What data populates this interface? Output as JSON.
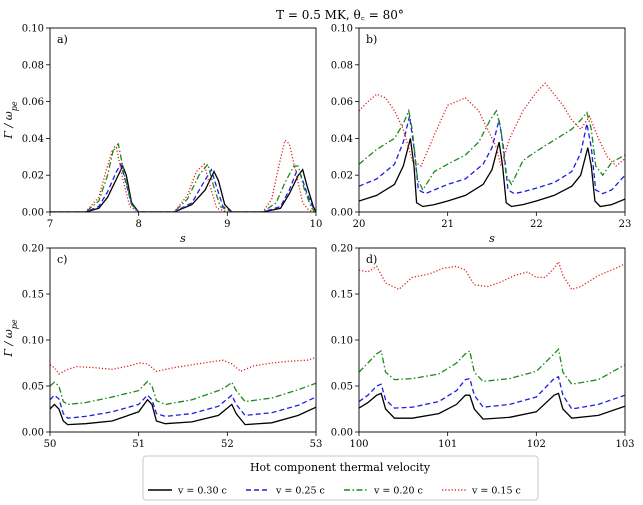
{
  "figure": {
    "title": "T = 0.5 MK, θ꜀ = 80°",
    "ylabel": "Γ / ω",
    "ylabel_sub": "pe"
  },
  "legend": {
    "title": "Hot component thermal velocity",
    "placement": "bottom-center",
    "entries": [
      {
        "label": "v = 0.30 c",
        "color": "#000000",
        "dash": "solid"
      },
      {
        "label": "v = 0.25 c",
        "color": "#1f1fe0",
        "dash": "dashed"
      },
      {
        "label": "v = 0.20 c",
        "color": "#1a8a1a",
        "dash": "dashdot"
      },
      {
        "label": "v = 0.15 c",
        "color": "#e02020",
        "dash": "dotted"
      }
    ]
  },
  "chart_data": [
    {
      "type": "line",
      "panel": "a)",
      "xlabel": "s",
      "xlim": [
        7,
        10
      ],
      "ylim": [
        0,
        0.1
      ],
      "xticks": [
        "7",
        "8",
        "9",
        "10"
      ],
      "yticks": [
        "0.00",
        "0.02",
        "0.04",
        "0.06",
        "0.08",
        "0.10"
      ],
      "series": [
        {
          "name": "v = 0.30 c",
          "color": "#000000",
          "dash": "solid",
          "x": [
            7.0,
            7.4,
            7.55,
            7.65,
            7.75,
            7.82,
            7.86,
            7.92,
            8.0,
            8.4,
            8.6,
            8.75,
            8.85,
            8.9,
            8.97,
            9.05,
            9.4,
            9.6,
            9.7,
            9.8,
            9.85,
            9.9,
            9.97,
            10.0
          ],
          "y": [
            0.0,
            0.0,
            0.002,
            0.008,
            0.018,
            0.025,
            0.02,
            0.005,
            0.0,
            0.0,
            0.004,
            0.012,
            0.022,
            0.017,
            0.004,
            0.0,
            0.0,
            0.002,
            0.01,
            0.02,
            0.023,
            0.014,
            0.003,
            0.0
          ]
        },
        {
          "name": "v = 0.25 c",
          "color": "#1f1fe0",
          "dash": "dashed",
          "x": [
            7.0,
            7.4,
            7.55,
            7.65,
            7.75,
            7.8,
            7.85,
            7.92,
            8.0,
            8.4,
            8.6,
            8.72,
            8.82,
            8.87,
            8.95,
            9.05,
            9.4,
            9.6,
            9.7,
            9.78,
            9.83,
            9.9,
            9.97,
            10.0
          ],
          "y": [
            0.0,
            0.0,
            0.003,
            0.011,
            0.022,
            0.026,
            0.017,
            0.004,
            0.0,
            0.0,
            0.005,
            0.015,
            0.023,
            0.015,
            0.003,
            0.0,
            0.0,
            0.003,
            0.012,
            0.022,
            0.02,
            0.01,
            0.002,
            0.0
          ]
        },
        {
          "name": "v = 0.20 c",
          "color": "#1a8a1a",
          "dash": "dashdot",
          "x": [
            7.0,
            7.4,
            7.55,
            7.65,
            7.72,
            7.77,
            7.84,
            7.92,
            8.0,
            8.4,
            8.55,
            8.68,
            8.78,
            8.84,
            8.92,
            9.05,
            9.4,
            9.55,
            9.65,
            9.75,
            9.8,
            9.87,
            9.95,
            10.0
          ],
          "y": [
            0.0,
            0.0,
            0.006,
            0.02,
            0.035,
            0.037,
            0.02,
            0.004,
            0.0,
            0.0,
            0.007,
            0.02,
            0.026,
            0.015,
            0.003,
            0.0,
            0.0,
            0.005,
            0.016,
            0.025,
            0.025,
            0.012,
            0.002,
            0.0
          ]
        },
        {
          "name": "v = 0.15 c",
          "color": "#e02020",
          "dash": "dotted",
          "x": [
            7.0,
            7.4,
            7.55,
            7.63,
            7.7,
            7.75,
            7.82,
            7.9,
            8.0,
            8.4,
            8.55,
            8.65,
            8.74,
            8.8,
            8.88,
            9.0,
            9.4,
            9.5,
            9.58,
            9.65,
            9.7,
            9.78,
            9.85,
            9.92,
            10.0
          ],
          "y": [
            0.0,
            0.0,
            0.008,
            0.022,
            0.033,
            0.035,
            0.018,
            0.003,
            0.0,
            0.0,
            0.009,
            0.022,
            0.026,
            0.015,
            0.002,
            0.0,
            0.0,
            0.007,
            0.025,
            0.039,
            0.037,
            0.02,
            0.005,
            0.001,
            0.0
          ]
        }
      ]
    },
    {
      "type": "line",
      "panel": "b)",
      "xlabel": "s",
      "xlim": [
        20,
        23
      ],
      "ylim": [
        0,
        0.1
      ],
      "xticks": [
        "20",
        "21",
        "22",
        "23"
      ],
      "yticks": [
        "0.00",
        "0.02",
        "0.04",
        "0.06",
        "0.08",
        "0.10"
      ],
      "series": [
        {
          "name": "v = 0.30 c",
          "color": "#000000",
          "dash": "solid",
          "x": [
            20.0,
            20.2,
            20.4,
            20.5,
            20.58,
            20.62,
            20.65,
            20.72,
            20.85,
            21.0,
            21.2,
            21.4,
            21.5,
            21.58,
            21.62,
            21.66,
            21.72,
            21.85,
            22.0,
            22.2,
            22.4,
            22.5,
            22.58,
            22.62,
            22.66,
            22.72,
            22.85,
            23.0
          ],
          "y": [
            0.006,
            0.009,
            0.015,
            0.025,
            0.04,
            0.025,
            0.005,
            0.003,
            0.004,
            0.006,
            0.009,
            0.015,
            0.023,
            0.038,
            0.025,
            0.005,
            0.003,
            0.004,
            0.006,
            0.009,
            0.014,
            0.02,
            0.035,
            0.025,
            0.006,
            0.003,
            0.004,
            0.007
          ]
        },
        {
          "name": "v = 0.25 c",
          "color": "#1f1fe0",
          "dash": "dashed",
          "x": [
            20.0,
            20.2,
            20.4,
            20.5,
            20.57,
            20.62,
            20.67,
            20.75,
            20.85,
            21.0,
            21.2,
            21.4,
            21.5,
            21.58,
            21.63,
            21.68,
            21.75,
            21.85,
            22.0,
            22.2,
            22.4,
            22.5,
            22.57,
            22.62,
            22.67,
            22.75,
            22.85,
            23.0
          ],
          "y": [
            0.014,
            0.018,
            0.026,
            0.038,
            0.052,
            0.035,
            0.012,
            0.01,
            0.012,
            0.015,
            0.018,
            0.026,
            0.035,
            0.05,
            0.035,
            0.012,
            0.01,
            0.011,
            0.013,
            0.016,
            0.022,
            0.032,
            0.048,
            0.035,
            0.012,
            0.01,
            0.012,
            0.02
          ]
        },
        {
          "name": "v = 0.20 c",
          "color": "#1a8a1a",
          "dash": "dashdot",
          "x": [
            20.0,
            20.2,
            20.4,
            20.5,
            20.56,
            20.6,
            20.66,
            20.72,
            20.85,
            21.0,
            21.2,
            21.35,
            21.48,
            21.55,
            21.6,
            21.66,
            21.72,
            21.85,
            22.0,
            22.2,
            22.4,
            22.5,
            22.57,
            22.62,
            22.67,
            22.75,
            22.85,
            23.0
          ],
          "y": [
            0.026,
            0.034,
            0.04,
            0.048,
            0.055,
            0.045,
            0.018,
            0.012,
            0.022,
            0.026,
            0.031,
            0.038,
            0.05,
            0.055,
            0.045,
            0.02,
            0.015,
            0.028,
            0.033,
            0.039,
            0.045,
            0.05,
            0.054,
            0.045,
            0.025,
            0.02,
            0.027,
            0.031
          ]
        },
        {
          "name": "v = 0.15 c",
          "color": "#e02020",
          "dash": "dotted",
          "x": [
            20.0,
            20.1,
            20.2,
            20.3,
            20.4,
            20.5,
            20.6,
            20.7,
            20.85,
            21.0,
            21.2,
            21.35,
            21.45,
            21.55,
            21.6,
            21.7,
            21.85,
            22.0,
            22.1,
            22.2,
            22.3,
            22.4,
            22.5,
            22.6,
            22.7,
            22.8,
            22.9,
            23.0
          ],
          "y": [
            0.055,
            0.06,
            0.064,
            0.062,
            0.055,
            0.045,
            0.028,
            0.025,
            0.042,
            0.058,
            0.062,
            0.055,
            0.045,
            0.035,
            0.025,
            0.04,
            0.055,
            0.065,
            0.07,
            0.064,
            0.058,
            0.05,
            0.045,
            0.052,
            0.04,
            0.03,
            0.025,
            0.029
          ]
        }
      ]
    },
    {
      "type": "line",
      "panel": "c)",
      "xlabel": "s",
      "xlim": [
        50,
        53
      ],
      "ylim": [
        0,
        0.2
      ],
      "xticks": [
        "50",
        "51",
        "52",
        "53"
      ],
      "yticks": [
        "0.00",
        "0.05",
        "0.10",
        "0.15",
        "0.20"
      ],
      "series": [
        {
          "name": "v = 0.30 c",
          "color": "#000000",
          "dash": "solid",
          "x": [
            50.0,
            50.05,
            50.1,
            50.15,
            50.2,
            50.4,
            50.7,
            51.0,
            51.1,
            51.15,
            51.2,
            51.3,
            51.6,
            51.9,
            52.0,
            52.05,
            52.1,
            52.2,
            52.5,
            52.8,
            53.0
          ],
          "y": [
            0.025,
            0.03,
            0.025,
            0.012,
            0.008,
            0.009,
            0.012,
            0.022,
            0.035,
            0.03,
            0.012,
            0.009,
            0.011,
            0.018,
            0.026,
            0.03,
            0.02,
            0.008,
            0.01,
            0.018,
            0.027
          ]
        },
        {
          "name": "v = 0.25 c",
          "color": "#1f1fe0",
          "dash": "dashed",
          "x": [
            50.0,
            50.05,
            50.1,
            50.15,
            50.2,
            50.4,
            50.7,
            51.0,
            51.1,
            51.15,
            51.2,
            51.3,
            51.6,
            51.9,
            52.0,
            52.05,
            52.1,
            52.2,
            52.5,
            52.8,
            53.0
          ],
          "y": [
            0.035,
            0.04,
            0.036,
            0.02,
            0.015,
            0.017,
            0.022,
            0.03,
            0.04,
            0.035,
            0.02,
            0.017,
            0.02,
            0.028,
            0.036,
            0.04,
            0.03,
            0.018,
            0.021,
            0.029,
            0.038
          ]
        },
        {
          "name": "v = 0.20 c",
          "color": "#1a8a1a",
          "dash": "dashdot",
          "x": [
            50.0,
            50.05,
            50.1,
            50.15,
            50.2,
            50.4,
            50.7,
            51.0,
            51.1,
            51.15,
            51.2,
            51.3,
            51.6,
            51.9,
            52.0,
            52.05,
            52.1,
            52.2,
            52.5,
            52.8,
            53.0
          ],
          "y": [
            0.05,
            0.054,
            0.05,
            0.033,
            0.03,
            0.032,
            0.038,
            0.045,
            0.055,
            0.05,
            0.034,
            0.03,
            0.035,
            0.045,
            0.05,
            0.054,
            0.045,
            0.033,
            0.037,
            0.046,
            0.053
          ]
        },
        {
          "name": "v = 0.15 c",
          "color": "#e02020",
          "dash": "dotted",
          "x": [
            50.0,
            50.05,
            50.1,
            50.2,
            50.3,
            50.5,
            50.7,
            50.9,
            51.0,
            51.1,
            51.15,
            51.2,
            51.4,
            51.6,
            51.8,
            51.95,
            52.05,
            52.1,
            52.15,
            52.3,
            52.5,
            52.7,
            52.9,
            53.0
          ],
          "y": [
            0.073,
            0.07,
            0.063,
            0.068,
            0.071,
            0.07,
            0.068,
            0.072,
            0.075,
            0.074,
            0.07,
            0.066,
            0.07,
            0.073,
            0.076,
            0.078,
            0.074,
            0.07,
            0.066,
            0.072,
            0.075,
            0.077,
            0.078,
            0.081
          ]
        }
      ]
    },
    {
      "type": "line",
      "panel": "d)",
      "xlabel": "s",
      "xlim": [
        100,
        103
      ],
      "ylim": [
        0,
        0.2
      ],
      "xticks": [
        "100",
        "101",
        "102",
        "103"
      ],
      "yticks": [
        "0.00",
        "0.05",
        "0.10",
        "0.15",
        "0.20"
      ],
      "series": [
        {
          "name": "v = 0.30 c",
          "color": "#000000",
          "dash": "solid",
          "x": [
            100.0,
            100.1,
            100.2,
            100.25,
            100.3,
            100.4,
            100.6,
            100.9,
            101.1,
            101.2,
            101.25,
            101.3,
            101.4,
            101.7,
            102.0,
            102.2,
            102.25,
            102.3,
            102.4,
            102.7,
            103.0
          ],
          "y": [
            0.026,
            0.032,
            0.04,
            0.042,
            0.025,
            0.015,
            0.015,
            0.02,
            0.03,
            0.04,
            0.04,
            0.025,
            0.014,
            0.016,
            0.022,
            0.04,
            0.042,
            0.025,
            0.015,
            0.018,
            0.028
          ]
        },
        {
          "name": "v = 0.25 c",
          "color": "#1f1fe0",
          "dash": "dashed",
          "x": [
            100.0,
            100.1,
            100.2,
            100.25,
            100.3,
            100.4,
            100.6,
            100.9,
            101.1,
            101.2,
            101.25,
            101.3,
            101.4,
            101.7,
            102.0,
            102.2,
            102.25,
            102.3,
            102.4,
            102.7,
            103.0
          ],
          "y": [
            0.033,
            0.04,
            0.05,
            0.052,
            0.035,
            0.026,
            0.027,
            0.033,
            0.045,
            0.057,
            0.058,
            0.04,
            0.027,
            0.03,
            0.038,
            0.058,
            0.06,
            0.04,
            0.025,
            0.03,
            0.04
          ]
        },
        {
          "name": "v = 0.20 c",
          "color": "#1a8a1a",
          "dash": "dashdot",
          "x": [
            100.0,
            100.1,
            100.2,
            100.25,
            100.3,
            100.4,
            100.6,
            100.9,
            101.1,
            101.2,
            101.25,
            101.3,
            101.4,
            101.7,
            102.0,
            102.2,
            102.25,
            102.3,
            102.4,
            102.7,
            103.0
          ],
          "y": [
            0.065,
            0.075,
            0.085,
            0.088,
            0.065,
            0.057,
            0.058,
            0.063,
            0.075,
            0.085,
            0.088,
            0.065,
            0.055,
            0.058,
            0.066,
            0.085,
            0.09,
            0.065,
            0.052,
            0.057,
            0.073
          ]
        },
        {
          "name": "v = 0.15 c",
          "color": "#e02020",
          "dash": "dotted",
          "x": [
            100.0,
            100.1,
            100.2,
            100.3,
            100.45,
            100.6,
            100.8,
            100.95,
            101.1,
            101.2,
            101.3,
            101.45,
            101.6,
            101.75,
            101.9,
            102.0,
            102.1,
            102.2,
            102.25,
            102.3,
            102.4,
            102.5,
            102.7,
            102.9,
            103.0
          ],
          "y": [
            0.176,
            0.174,
            0.18,
            0.162,
            0.155,
            0.168,
            0.172,
            0.178,
            0.18,
            0.176,
            0.16,
            0.158,
            0.163,
            0.17,
            0.174,
            0.168,
            0.168,
            0.178,
            0.185,
            0.17,
            0.155,
            0.158,
            0.17,
            0.178,
            0.183
          ]
        }
      ]
    }
  ]
}
